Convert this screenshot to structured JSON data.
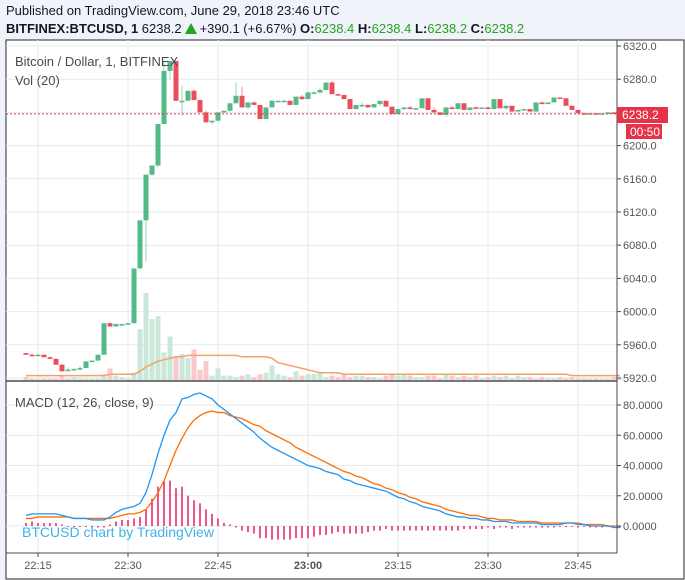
{
  "header": {
    "published": "Published on TradingView.com, June 29, 2018 23:46 UTC",
    "symbol": "BITFINEX:BTCUSD, 1",
    "last": "6238.2",
    "change": "+390.1 (+6.67%)",
    "o_label": "O:",
    "o": "6238.4",
    "h_label": "H:",
    "h": "6238.4",
    "l_label": "L:",
    "l": "6238.2",
    "c_label": "C:",
    "c": "6238.2"
  },
  "legend": {
    "main": "Bitcoin / Dollar, 1, BITFINEX",
    "vol": "Vol (20)",
    "macd": "MACD (12, 26, close, 9)"
  },
  "price_tag": {
    "value": "6238.2",
    "countdown": "00:50"
  },
  "watermark": "BTCUSD chart by TradingView",
  "colors": {
    "up": "#53b987",
    "down": "#eb4d5c",
    "vol_up": "#c9e8d9",
    "vol_down": "#f8c8cd",
    "vol_ma": "#f5a26a",
    "macd": "#2196f3",
    "signal": "#ff6d00",
    "hist": "#e91e63",
    "grid": "#e1ecf2",
    "axis": "#4a4a4a",
    "price_line": "#e5344a"
  },
  "chart_data": [
    {
      "type": "candlestick",
      "title": "Bitcoin / Dollar, 1, BITFINEX",
      "ylim": [
        5915,
        6325
      ],
      "yticks": [
        5920,
        5960,
        6000,
        6040,
        6080,
        6120,
        6160,
        6200,
        6240,
        6280,
        6320
      ],
      "xticks": [
        "22:15",
        "22:30",
        "22:45",
        "23:00",
        "23:15",
        "23:30",
        "23:45"
      ],
      "start_time": "22:13",
      "interval_min": 1,
      "ohlc": [
        [
          5950,
          5950,
          5948,
          5948
        ],
        [
          5948,
          5949,
          5947,
          5947
        ],
        [
          5947,
          5949,
          5947,
          5948
        ],
        [
          5948,
          5948,
          5945,
          5945
        ],
        [
          5945,
          5946,
          5943,
          5943
        ],
        [
          5943,
          5944,
          5936,
          5936
        ],
        [
          5936,
          5937,
          5928,
          5928
        ],
        [
          5929,
          5933,
          5928,
          5930
        ],
        [
          5930,
          5931,
          5929,
          5931
        ],
        [
          5931,
          5934,
          5929,
          5932
        ],
        [
          5932,
          5940,
          5932,
          5940
        ],
        [
          5940,
          5941,
          5939,
          5941
        ],
        [
          5941,
          5948,
          5941,
          5948
        ],
        [
          5948,
          5986,
          5948,
          5986
        ],
        [
          5986,
          5987,
          5982,
          5982
        ],
        [
          5982,
          5986,
          5982,
          5985
        ],
        [
          5985,
          5986,
          5984,
          5985
        ],
        [
          5985,
          5986,
          5984,
          5986
        ],
        [
          5986,
          6052,
          5986,
          6052
        ],
        [
          6052,
          6088,
          6052,
          6110
        ],
        [
          6110,
          6165,
          6060,
          6165
        ],
        [
          6165,
          6176,
          6163,
          6176
        ],
        [
          6176,
          6226,
          6174,
          6226
        ],
        [
          6226,
          6302,
          6226,
          6290
        ],
        [
          6290,
          6302,
          6280,
          6302
        ],
        [
          6302,
          6302,
          6254,
          6254
        ],
        [
          6254,
          6272,
          6236,
          6254
        ],
        [
          6254,
          6266,
          6254,
          6266
        ],
        [
          6266,
          6268,
          6255,
          6255
        ],
        [
          6255,
          6255,
          6240,
          6240
        ],
        [
          6240,
          6242,
          6228,
          6228
        ],
        [
          6228,
          6230,
          6226,
          6230
        ],
        [
          6230,
          6240,
          6230,
          6240
        ],
        [
          6240,
          6242,
          6238,
          6242
        ],
        [
          6242,
          6251,
          6241,
          6251
        ],
        [
          6251,
          6276,
          6251,
          6260
        ],
        [
          6260,
          6271,
          6246,
          6246
        ],
        [
          6246,
          6252,
          6244,
          6252
        ],
        [
          6252,
          6253,
          6249,
          6249
        ],
        [
          6249,
          6249,
          6232,
          6232
        ],
        [
          6232,
          6246,
          6232,
          6246
        ],
        [
          6246,
          6255,
          6246,
          6254
        ],
        [
          6254,
          6254,
          6253,
          6254
        ],
        [
          6254,
          6255,
          6253,
          6254
        ],
        [
          6254,
          6254,
          6249,
          6249
        ],
        [
          6249,
          6259,
          6249,
          6259
        ],
        [
          6259,
          6261,
          6255,
          6256
        ],
        [
          6256,
          6265,
          6256,
          6264
        ],
        [
          6264,
          6266,
          6262,
          6264
        ],
        [
          6264,
          6269,
          6263,
          6267
        ],
        [
          6267,
          6276,
          6267,
          6276
        ],
        [
          6276,
          6278,
          6262,
          6262
        ],
        [
          6262,
          6262,
          6260,
          6261
        ],
        [
          6261,
          6261,
          6256,
          6256
        ],
        [
          6256,
          6256,
          6244,
          6244
        ],
        [
          6244,
          6249,
          6244,
          6249
        ],
        [
          6249,
          6252,
          6246,
          6249
        ],
        [
          6249,
          6250,
          6246,
          6246
        ],
        [
          6246,
          6250,
          6246,
          6250
        ],
        [
          6250,
          6254,
          6248,
          6254
        ],
        [
          6254,
          6254,
          6247,
          6247
        ],
        [
          6247,
          6247,
          6238,
          6238
        ],
        [
          6238,
          6244,
          6238,
          6244
        ],
        [
          6244,
          6246,
          6243,
          6246
        ],
        [
          6246,
          6248,
          6244,
          6244
        ],
        [
          6244,
          6245,
          6243,
          6245
        ],
        [
          6245,
          6257,
          6245,
          6257
        ],
        [
          6257,
          6257,
          6243,
          6243
        ],
        [
          6243,
          6246,
          6239,
          6240
        ],
        [
          6240,
          6240,
          6237,
          6237
        ],
        [
          6237,
          6246,
          6235,
          6246
        ],
        [
          6246,
          6248,
          6244,
          6244
        ],
        [
          6244,
          6251,
          6244,
          6251
        ],
        [
          6251,
          6251,
          6243,
          6243
        ],
        [
          6243,
          6246,
          6243,
          6246
        ],
        [
          6246,
          6247,
          6245,
          6245
        ],
        [
          6245,
          6246,
          6244,
          6246
        ],
        [
          6246,
          6247,
          6244,
          6244
        ],
        [
          6244,
          6256,
          6244,
          6256
        ],
        [
          6256,
          6256,
          6245,
          6245
        ],
        [
          6245,
          6248,
          6243,
          6248
        ],
        [
          6248,
          6248,
          6241,
          6241
        ],
        [
          6241,
          6243,
          6241,
          6243
        ],
        [
          6243,
          6244,
          6242,
          6244
        ],
        [
          6244,
          6244,
          6241,
          6241
        ],
        [
          6241,
          6252,
          6241,
          6252
        ],
        [
          6252,
          6253,
          6250,
          6250
        ],
        [
          6250,
          6252,
          6250,
          6252
        ],
        [
          6252,
          6258,
          6252,
          6258
        ],
        [
          6258,
          6258,
          6256,
          6257
        ],
        [
          6257,
          6257,
          6248,
          6248
        ],
        [
          6248,
          6248,
          6243,
          6243
        ],
        [
          6243,
          6243,
          6239,
          6239
        ],
        [
          6239,
          6240,
          6238,
          6238
        ],
        [
          6238,
          6239,
          6238,
          6239
        ],
        [
          6239,
          6239,
          6238,
          6238
        ],
        [
          6238,
          6239,
          6238,
          6239
        ],
        [
          6239,
          6240,
          6238,
          6240
        ],
        [
          6240,
          6240,
          6238,
          6239
        ],
        [
          6239,
          6240,
          6238,
          6240
        ],
        [
          6240,
          6240,
          6238,
          6238
        ],
        [
          6238,
          6238,
          6238,
          6238
        ]
      ],
      "volume": [
        2,
        1,
        1,
        1,
        1,
        1,
        3,
        1,
        2,
        1,
        1,
        1,
        1,
        4,
        8,
        3,
        2,
        1,
        5,
        35,
        60,
        42,
        44,
        19,
        30,
        16,
        18,
        15,
        21,
        7,
        13,
        3,
        8,
        3,
        3,
        2,
        3,
        4,
        2,
        4,
        5,
        10,
        4,
        3,
        2,
        6,
        3,
        4,
        4,
        5,
        2,
        3,
        2,
        4,
        2,
        3,
        3,
        2,
        2,
        1,
        3,
        4,
        3,
        4,
        3,
        2,
        2,
        3,
        3,
        1,
        4,
        3,
        2,
        3,
        2,
        3,
        1,
        2,
        3,
        2,
        3,
        1,
        3,
        2,
        2,
        1,
        2,
        1,
        1,
        2,
        1,
        2,
        1,
        1,
        1,
        1,
        1,
        1,
        2,
        1
      ],
      "vol_ma": [
        3,
        3,
        3,
        3,
        3,
        3,
        3,
        3,
        3,
        3,
        3,
        3,
        3,
        3,
        4,
        4,
        4,
        4,
        4,
        6,
        9,
        11,
        13,
        14,
        15,
        16,
        16,
        17,
        17,
        17,
        17,
        17,
        17,
        17,
        17,
        17,
        16,
        16,
        16,
        16,
        16,
        15,
        12,
        11,
        10,
        9,
        8,
        7,
        6,
        5,
        5,
        5,
        5,
        4,
        4,
        4,
        4,
        4,
        4,
        4,
        4,
        4,
        4,
        4,
        4,
        4,
        4,
        4,
        4,
        4,
        4,
        4,
        4,
        4,
        4,
        4,
        4,
        4,
        4,
        4,
        4,
        4,
        4,
        4,
        4,
        4,
        4,
        4,
        4,
        4,
        4,
        3,
        3,
        3,
        3,
        3,
        3,
        3,
        3,
        3
      ]
    },
    {
      "type": "line",
      "title": "MACD (12, 26, close, 9)",
      "ylim": [
        -30,
        95
      ],
      "yticks": [
        0,
        20,
        40,
        60,
        80
      ],
      "series": [
        {
          "name": "MACD",
          "values": [
            7,
            8,
            8,
            8,
            8,
            8,
            7,
            6,
            5,
            5,
            5,
            4,
            4,
            4,
            6,
            9,
            11,
            12,
            13,
            15,
            22,
            34,
            48,
            60,
            70,
            75,
            84,
            85,
            87,
            88,
            86,
            84,
            80,
            77,
            74,
            71,
            68,
            65,
            62,
            58,
            55,
            52,
            50,
            48,
            46,
            44,
            42,
            40,
            39,
            38,
            36,
            35,
            34,
            31,
            30,
            28,
            27,
            26,
            25,
            24,
            23,
            21,
            19,
            18,
            16,
            15,
            13,
            12,
            11,
            10,
            8,
            7,
            6,
            6,
            5,
            5,
            4,
            4,
            3,
            3,
            3,
            2,
            2,
            2,
            2,
            2,
            1,
            1,
            1,
            1,
            2,
            2,
            1,
            1,
            0,
            0,
            0,
            0,
            -1,
            -1
          ]
        },
        {
          "name": "Signal",
          "values": [
            5,
            5,
            6,
            6,
            6,
            6,
            6,
            6,
            5,
            5,
            5,
            5,
            5,
            5,
            5,
            6,
            7,
            8,
            8,
            9,
            11,
            16,
            22,
            30,
            40,
            50,
            58,
            65,
            70,
            73,
            75,
            76,
            75,
            75,
            73,
            72,
            71,
            69,
            67,
            66,
            63,
            61,
            59,
            57,
            55,
            52,
            50,
            48,
            46,
            44,
            42,
            40,
            38,
            36,
            35,
            33,
            32,
            30,
            28,
            27,
            25,
            24,
            22,
            21,
            19,
            18,
            16,
            15,
            14,
            13,
            11,
            10,
            9,
            8,
            7,
            7,
            6,
            5,
            5,
            4,
            4,
            4,
            3,
            3,
            3,
            3,
            2,
            2,
            2,
            2,
            2,
            2,
            2,
            1,
            1,
            1,
            1,
            0,
            0,
            0
          ]
        },
        {
          "name": "Histogram",
          "values": [
            2,
            3,
            2,
            2,
            2,
            2,
            1,
            0,
            0,
            0,
            0,
            -1,
            -1,
            -1,
            1,
            3,
            4,
            4,
            5,
            6,
            11,
            18,
            26,
            30,
            30,
            25,
            26,
            20,
            17,
            15,
            11,
            8,
            5,
            2,
            1,
            -1,
            -3,
            -4,
            -5,
            -8,
            -8,
            -9,
            -9,
            -9,
            -9,
            -8,
            -8,
            -8,
            -7,
            -6,
            -6,
            -5,
            -4,
            -5,
            -5,
            -5,
            -5,
            -4,
            -3,
            -3,
            -2,
            -3,
            -3,
            -3,
            -3,
            -3,
            -3,
            -3,
            -3,
            -3,
            -3,
            -3,
            -3,
            -2,
            -2,
            -2,
            -2,
            -1,
            -2,
            -1,
            -1,
            -2,
            -1,
            -1,
            -1,
            -1,
            -1,
            -1,
            -1,
            0,
            0,
            0,
            -1,
            0,
            -1,
            -1,
            -1,
            0,
            -1,
            -1
          ]
        }
      ]
    }
  ]
}
